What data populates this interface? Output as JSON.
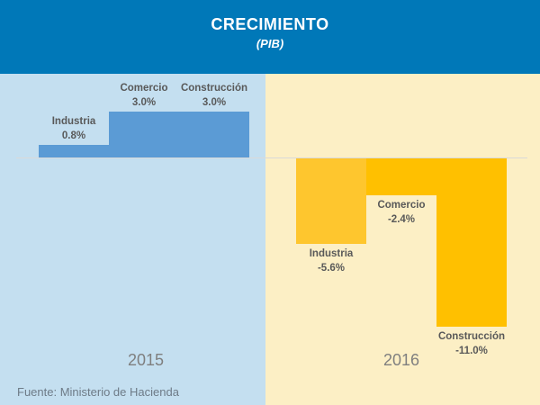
{
  "header": {
    "title": "CRECIMIENTO",
    "subtitle": "(PIB)"
  },
  "footer": {
    "source": "Fuente: Ministerio de Hacienda"
  },
  "colors": {
    "header_bg": "#0078B8",
    "title_color": "#FFFFFF",
    "panel_2015_bg": "#C4DFF0",
    "panel_2016_bg": "#FCEFC5",
    "bar_blue": "#5B9BD5",
    "bar_gold": "#FFC000",
    "bar_gold_light": "#FEC62E",
    "label_color": "#595959",
    "year_color": "#7F7F7F",
    "source_color": "#6E7B87",
    "axis_color": "#D9D9D9"
  },
  "chart_data": {
    "type": "bar",
    "title": "CRECIMIENTO",
    "subtitle": "(PIB)",
    "unit": "%",
    "baseline_value": 0,
    "grid": false,
    "legend": "none",
    "value_range_pct": [
      -11.0,
      3.0
    ],
    "groups": [
      {
        "year": "2015",
        "panel_bg": "#C4DFF0",
        "bars": [
          {
            "label": "Industria",
            "value": 0.8,
            "display": "0.8%",
            "color": "#5B9BD5"
          },
          {
            "label": "Comercio",
            "value": 3.0,
            "display": "3.0%",
            "color": "#5B9BD5"
          },
          {
            "label": "Construcción",
            "value": 3.0,
            "display": "3.0%",
            "color": "#5B9BD5"
          }
        ]
      },
      {
        "year": "2016",
        "panel_bg": "#FCEFC5",
        "bars": [
          {
            "label": "Industria",
            "value": -5.6,
            "display": "-5.6%",
            "color": "#FEC62E"
          },
          {
            "label": "Comercio",
            "value": -2.4,
            "display": "-2.4%",
            "color": "#FFC000"
          },
          {
            "label": "Construcción",
            "value": -11.0,
            "display": "-11.0%",
            "color": "#FFC000"
          }
        ]
      }
    ],
    "source": "Fuente: Ministerio de Hacienda"
  }
}
